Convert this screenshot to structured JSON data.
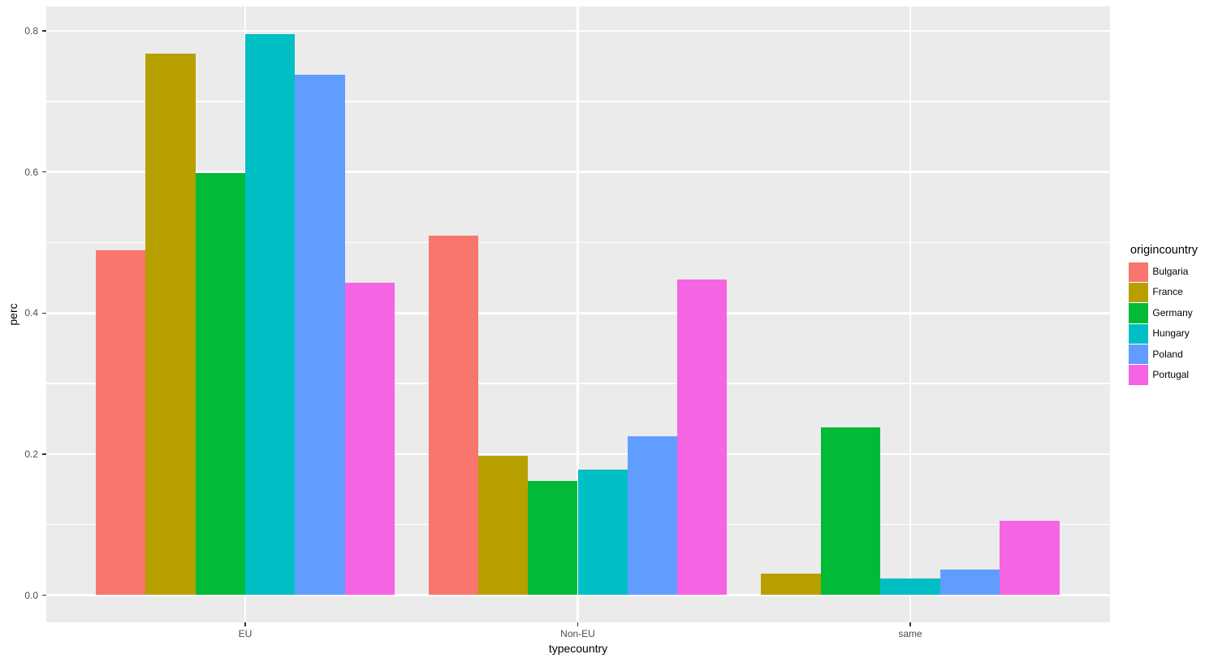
{
  "chart_data": {
    "type": "bar",
    "title": "",
    "xlabel": "typecountry",
    "ylabel": "perc",
    "legend_title": "origincountry",
    "legend_position": "right",
    "grid": true,
    "categories": [
      "EU",
      "Non-EU",
      "same"
    ],
    "series": [
      {
        "name": "Bulgaria",
        "color": "#F8766D",
        "values": [
          0.489,
          0.51,
          null
        ]
      },
      {
        "name": "France",
        "color": "#B79F00",
        "values": [
          0.768,
          0.198,
          0.031
        ]
      },
      {
        "name": "Germany",
        "color": "#00BA38",
        "values": [
          0.599,
          0.162,
          0.238
        ]
      },
      {
        "name": "Hungary",
        "color": "#00BFC4",
        "values": [
          0.795,
          0.178,
          0.024
        ]
      },
      {
        "name": "Poland",
        "color": "#619CFF",
        "values": [
          0.738,
          0.225,
          0.036
        ]
      },
      {
        "name": "Portugal",
        "color": "#F564E3",
        "values": [
          0.443,
          0.448,
          0.105
        ]
      }
    ],
    "y_ticks": {
      "values": [
        0,
        0.2,
        0.4,
        0.6,
        0.8
      ],
      "labels": [
        "0.0",
        "0.2",
        "0.4",
        "0.6",
        "0.8"
      ]
    },
    "y_minor_ticks": [
      0.1,
      0.3,
      0.5,
      0.7
    ],
    "ylim": [
      -0.039,
      0.835
    ],
    "colors": {
      "panel_background": "#EBEBEB",
      "grid": "#FFFFFF",
      "tick_text": "#4D4D4D",
      "axis_title_text": "#000000"
    }
  }
}
